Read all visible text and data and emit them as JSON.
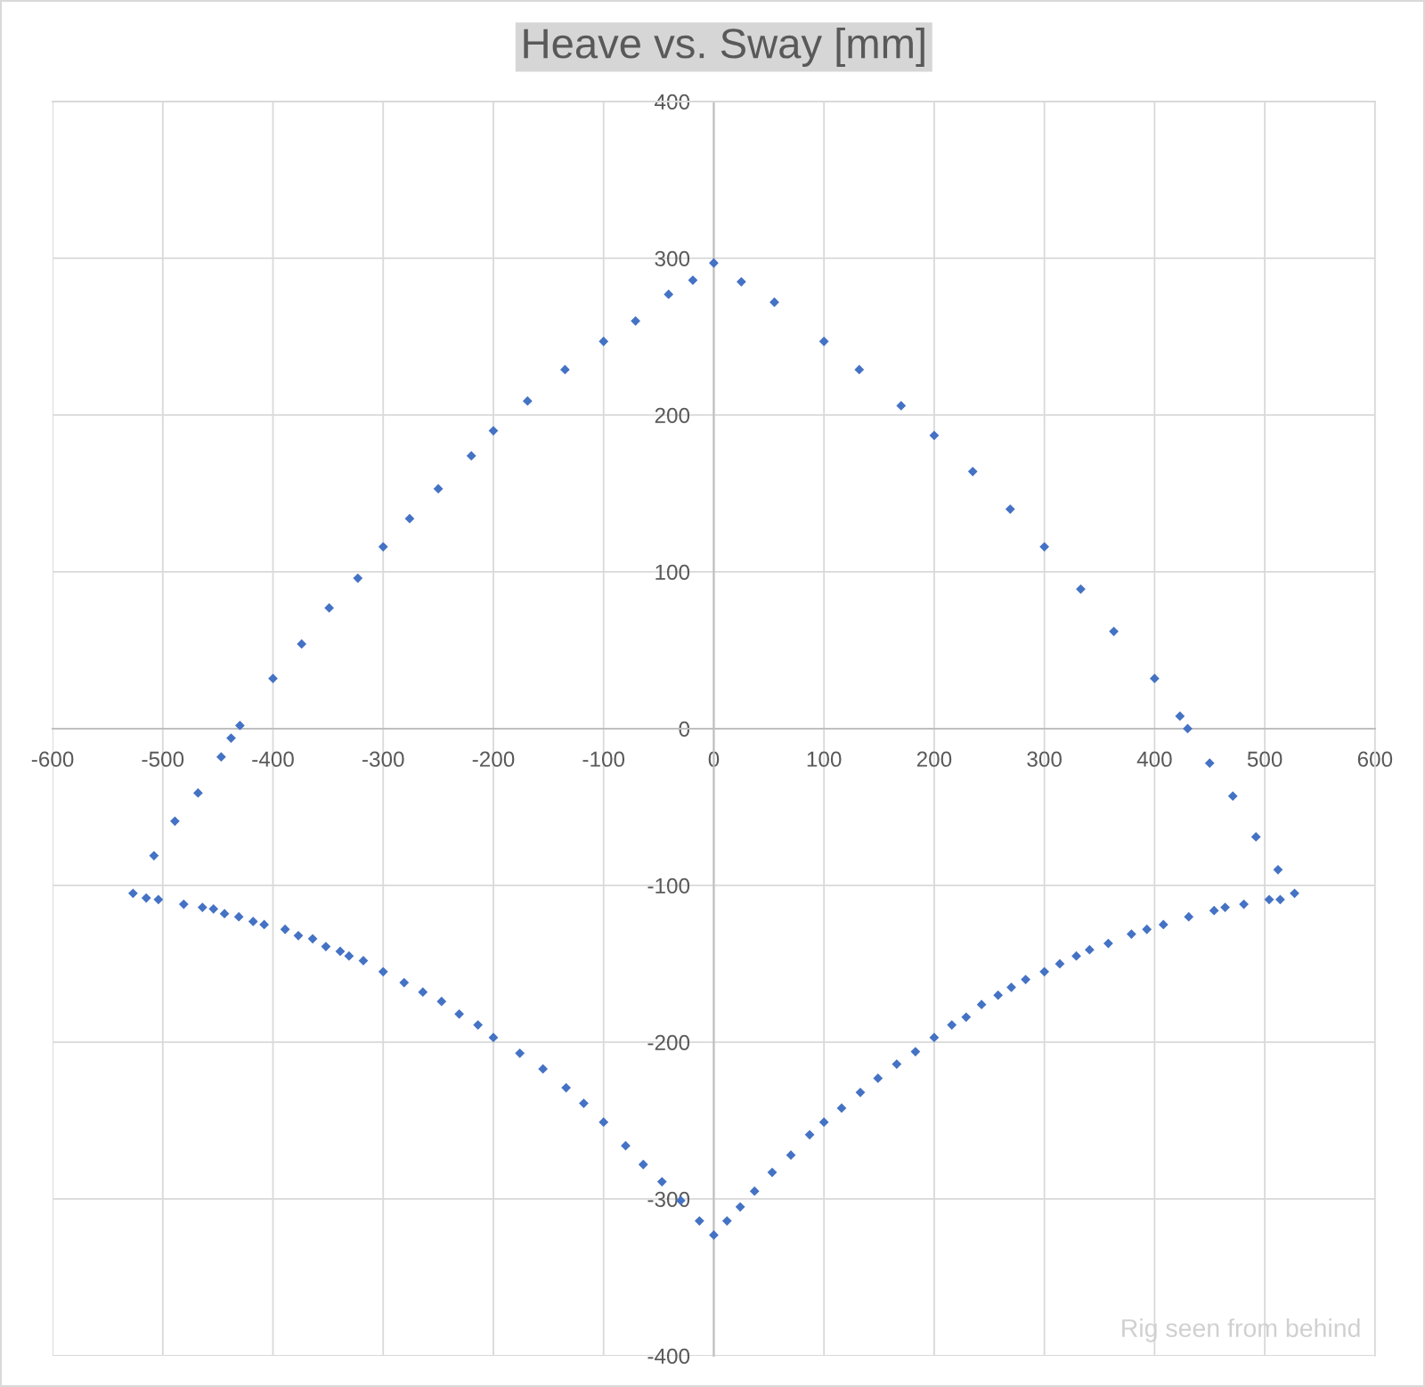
{
  "chart_data": {
    "type": "scatter",
    "title": "Heave vs. Sway [mm]",
    "x": [
      -527,
      -508,
      -489,
      -468,
      -447,
      -438,
      -430,
      -400,
      -374,
      -349,
      -323,
      -300,
      -276,
      -250,
      -220,
      -200,
      -169,
      -135,
      -100,
      -71,
      -41,
      -19,
      0,
      25,
      55,
      100,
      132,
      170,
      200,
      235,
      269,
      300,
      333,
      363,
      400,
      423,
      430,
      450,
      471,
      492,
      512,
      527,
      514,
      504,
      481,
      464,
      454,
      431,
      408,
      393,
      379,
      358,
      341,
      329,
      314,
      300,
      283,
      270,
      258,
      243,
      229,
      216,
      200,
      183,
      166,
      149,
      133,
      116,
      100,
      87,
      70,
      53,
      37,
      24,
      12,
      0,
      -13,
      -30,
      -47,
      -64,
      -80,
      -100,
      -118,
      -134,
      -155,
      -176,
      -200,
      -214,
      -231,
      -247,
      -264,
      -281,
      -300,
      -318,
      -331,
      -339,
      -352,
      -364,
      -377,
      -389,
      -408,
      -418,
      -431,
      -444,
      -454,
      -464,
      -481,
      -504,
      -515
    ],
    "series": [
      {
        "color": "#4472c4",
        "values": [
          -105,
          -81,
          -59,
          -41,
          -18,
          -6,
          2,
          32,
          54,
          77,
          96,
          116,
          134,
          153,
          174,
          190,
          209,
          229,
          247,
          260,
          277,
          286,
          297,
          285,
          272,
          247,
          229,
          206,
          187,
          164,
          140,
          116,
          89,
          62,
          32,
          8,
          0,
          -22,
          -43,
          -69,
          -90,
          -105,
          -109,
          -109,
          -112,
          -114,
          -116,
          -120,
          -125,
          -128,
          -131,
          -137,
          -141,
          -145,
          -150,
          -155,
          -160,
          -165,
          -170,
          -176,
          -184,
          -189,
          -197,
          -206,
          -214,
          -223,
          -232,
          -242,
          -251,
          -259,
          -272,
          -283,
          -295,
          -305,
          -314,
          -323,
          -314,
          -301,
          -289,
          -278,
          -266,
          -251,
          -239,
          -229,
          -217,
          -207,
          -197,
          -189,
          -182,
          -174,
          -168,
          -162,
          -155,
          -148,
          -145,
          -142,
          -139,
          -134,
          -132,
          -128,
          -125,
          -123,
          -120,
          -118,
          -115,
          -114,
          -112,
          -109,
          -108
        ]
      }
    ],
    "xlim": [
      -600,
      600
    ],
    "ylim": [
      -400,
      400
    ],
    "xticks": [
      -600,
      -500,
      -400,
      -300,
      -200,
      -100,
      0,
      100,
      200,
      300,
      400,
      500,
      600
    ],
    "yticks": [
      -400,
      -300,
      -200,
      -100,
      0,
      100,
      200,
      300,
      400
    ],
    "grid": true,
    "marker": "diamond",
    "annotations": [
      "Rig seen from behind"
    ]
  }
}
